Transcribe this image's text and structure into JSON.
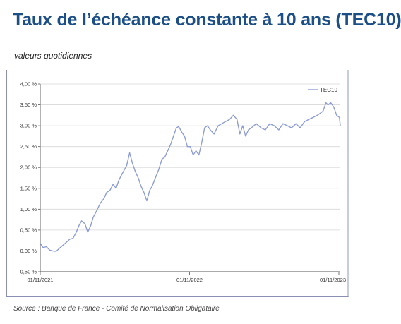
{
  "header": {
    "title": "Taux de l’échéance constante à 10 ans (TEC10)",
    "subtitle": "valeurs quotidiennes"
  },
  "footer": {
    "source": "Source : Banque de France - Comité de Normalisation Obligataire"
  },
  "chart_data": {
    "type": "line",
    "title": "Taux de l’échéance constante à 10 ans (TEC10)",
    "subtitle": "valeurs quotidiennes",
    "xlabel": "",
    "ylabel": "",
    "x_ticks": [
      "01/11/2021",
      "01/11/2022",
      "01/11/2023"
    ],
    "y_ticks": [
      "4,00 %",
      "3,50 %",
      "3,00 %",
      "2,50 %",
      "2,00 %",
      "1,50 %",
      "1,00 %",
      "0,50 %",
      "0,00 %",
      "-0,50 %"
    ],
    "ylim": [
      -0.5,
      4.0
    ],
    "xlim": [
      "2021-11-01",
      "2023-11-03"
    ],
    "grid": true,
    "legend": "top-right",
    "line_color": "#8e9cd6",
    "series": [
      {
        "name": "TEC10",
        "x": [
          "2021-11-01",
          "2021-11-08",
          "2021-11-16",
          "2021-11-24",
          "2021-12-01",
          "2021-12-10",
          "2021-12-20",
          "2022-01-03",
          "2022-01-12",
          "2022-01-20",
          "2022-01-28",
          "2022-02-04",
          "2022-02-10",
          "2022-02-18",
          "2022-02-25",
          "2022-03-04",
          "2022-03-10",
          "2022-03-18",
          "2022-03-28",
          "2022-04-05",
          "2022-04-12",
          "2022-04-20",
          "2022-04-28",
          "2022-05-05",
          "2022-05-12",
          "2022-05-20",
          "2022-05-31",
          "2022-06-07",
          "2022-06-14",
          "2022-06-21",
          "2022-06-28",
          "2022-07-05",
          "2022-07-12",
          "2022-07-19",
          "2022-07-26",
          "2022-08-01",
          "2022-08-09",
          "2022-08-17",
          "2022-08-25",
          "2022-09-01",
          "2022-09-08",
          "2022-09-15",
          "2022-09-22",
          "2022-09-29",
          "2022-10-05",
          "2022-10-12",
          "2022-10-19",
          "2022-10-26",
          "2022-11-02",
          "2022-11-09",
          "2022-11-16",
          "2022-11-23",
          "2022-11-30",
          "2022-12-07",
          "2022-12-14",
          "2022-12-21",
          "2022-12-30",
          "2023-01-09",
          "2023-01-18",
          "2023-01-27",
          "2023-02-06",
          "2023-02-15",
          "2023-02-24",
          "2023-03-03",
          "2023-03-10",
          "2023-03-17",
          "2023-03-24",
          "2023-03-31",
          "2023-04-12",
          "2023-04-24",
          "2023-05-04",
          "2023-05-15",
          "2023-05-26",
          "2023-06-06",
          "2023-06-16",
          "2023-06-27",
          "2023-07-07",
          "2023-07-18",
          "2023-07-28",
          "2023-08-08",
          "2023-08-18",
          "2023-08-29",
          "2023-09-08",
          "2023-09-15",
          "2023-09-22",
          "2023-09-29",
          "2023-10-04",
          "2023-10-11",
          "2023-10-18",
          "2023-10-25",
          "2023-11-01",
          "2023-11-03"
        ],
        "values": [
          0.18,
          0.08,
          0.1,
          0.02,
          0.0,
          -0.01,
          0.08,
          0.2,
          0.28,
          0.3,
          0.45,
          0.62,
          0.72,
          0.65,
          0.45,
          0.6,
          0.8,
          0.95,
          1.15,
          1.25,
          1.4,
          1.45,
          1.6,
          1.5,
          1.7,
          1.85,
          2.05,
          2.35,
          2.1,
          1.9,
          1.75,
          1.55,
          1.4,
          1.2,
          1.45,
          1.55,
          1.75,
          1.95,
          2.2,
          2.25,
          2.4,
          2.55,
          2.75,
          2.95,
          2.98,
          2.85,
          2.75,
          2.5,
          2.5,
          2.3,
          2.4,
          2.3,
          2.6,
          2.95,
          3.0,
          2.9,
          2.8,
          3.0,
          3.05,
          3.1,
          3.15,
          3.25,
          3.15,
          2.8,
          3.0,
          2.75,
          2.9,
          2.95,
          3.05,
          2.95,
          2.9,
          3.05,
          3.0,
          2.9,
          3.05,
          3.0,
          2.95,
          3.05,
          2.95,
          3.1,
          3.15,
          3.2,
          3.25,
          3.3,
          3.35,
          3.55,
          3.5,
          3.55,
          3.45,
          3.25,
          3.2,
          3.0
        ]
      }
    ]
  }
}
